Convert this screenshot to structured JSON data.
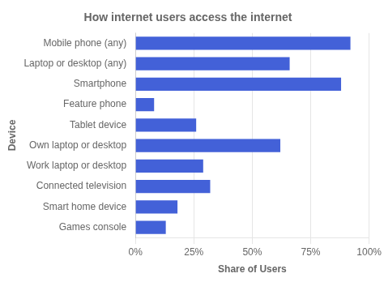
{
  "chart_data": {
    "type": "bar",
    "orientation": "horizontal",
    "title": "How internet users access the internet",
    "xlabel": "Share of Users",
    "ylabel": "Device",
    "categories": [
      "Games console",
      "Smart home device",
      "Connected television",
      "Work laptop or desktop",
      "Own laptop or desktop",
      "Tablet device",
      "Feature phone",
      "Smartphone",
      "Laptop or desktop (any)",
      "Mobile phone (any)"
    ],
    "values": [
      13,
      18,
      32,
      29,
      62,
      26,
      8,
      88,
      66,
      92
    ],
    "color": "#4361d8",
    "xlim": [
      0,
      100
    ],
    "xticks": [
      {
        "value": 0,
        "label": "0%"
      },
      {
        "value": 25,
        "label": "25%"
      },
      {
        "value": 50,
        "label": "50%"
      },
      {
        "value": 75,
        "label": "75%"
      },
      {
        "value": 100,
        "label": "100%"
      }
    ],
    "grid": true
  }
}
